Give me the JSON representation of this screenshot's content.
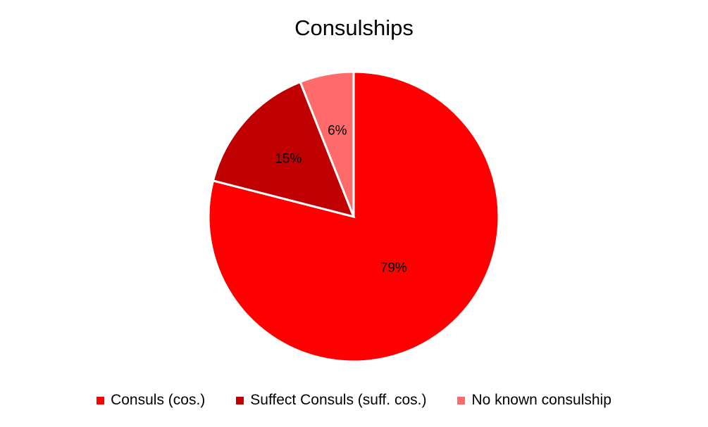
{
  "chart_data": {
    "type": "pie",
    "title": "Consulships",
    "slices": [
      {
        "name": "Consuls (cos.)",
        "value": 79,
        "label": "79%",
        "color": "#ff0000"
      },
      {
        "name": "Suffect Consuls (suff. cos.)",
        "value": 15,
        "label": "15%",
        "color": "#c00000"
      },
      {
        "name": "No known consulship",
        "value": 6,
        "label": "6%",
        "color": "#ff6b6b"
      }
    ],
    "legend_position": "bottom"
  }
}
